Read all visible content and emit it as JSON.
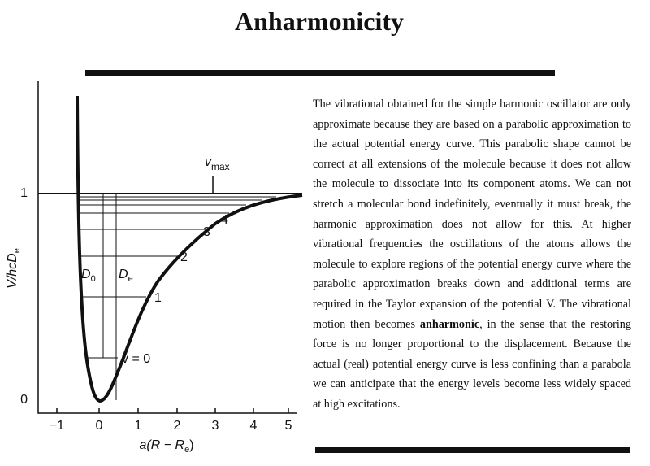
{
  "header": {
    "title": "Anharmonicity"
  },
  "figure": {
    "y_axis_label": {
      "main": "V/hcD",
      "sub": "e"
    },
    "x_axis_label": {
      "main": "a(R − R",
      "sub": "e",
      "end": ")"
    },
    "y_ticks": [
      "0",
      "1"
    ],
    "x_ticks": [
      "−1",
      "0",
      "1",
      "2",
      "3",
      "4",
      "5"
    ],
    "level_labels": [
      "v = 0",
      "1",
      "2",
      "3",
      "4"
    ],
    "d0": {
      "main": "D",
      "sub": "0"
    },
    "de": {
      "main": "D",
      "sub": "e"
    },
    "vmax": {
      "main": "v",
      "sub": "max"
    }
  },
  "text": {
    "before": "The vibrational obtained for the simple harmonic oscillator are only approximate because they are based on a parabolic approximation to the actual potential energy curve. This parabolic shape cannot be correct at all extensions of the molecule because it does not allow the molecule to dissociate into its component atoms. We can not stretch a molecular bond indefinitely, eventually it must break, the harmonic approximation does not allow for this. At higher vibrational frequencies the oscillations of the atoms allows the molecule to explore regions of the potential energy curve where the parabolic approximation breaks down and additional terms are required in the Taylor expansion of the potential V. The vibrational motion then becomes",
    "bold": "anharmonic",
    "after": ", in the sense that the restoring force is no longer proportional to the displacement. Because the actual (real) potential energy curve is less confining than a parabola we can anticipate that the energy levels become less widely spaced at high excitations."
  }
}
